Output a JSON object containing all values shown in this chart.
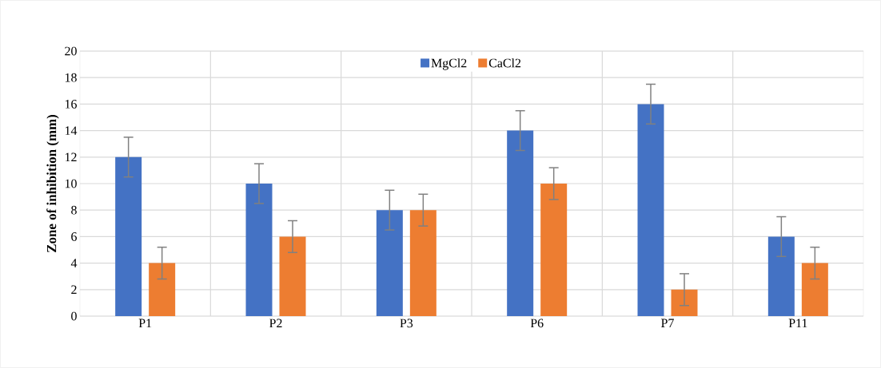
{
  "chart_data": {
    "type": "bar",
    "ylabel": "Zone of inhibition (mm)",
    "categories": [
      "P1",
      "P2",
      "P3",
      "P6",
      "P7",
      "P11"
    ],
    "series": [
      {
        "name": "MgCl2",
        "color": "#4472c4",
        "values": [
          12,
          10,
          8,
          14,
          16,
          6
        ],
        "errors": [
          1.5,
          1.5,
          1.5,
          1.5,
          1.5,
          1.5
        ]
      },
      {
        "name": "CaCl2",
        "color": "#ed7d31",
        "values": [
          4,
          6,
          8,
          10,
          2,
          4
        ],
        "errors": [
          1.2,
          1.2,
          1.2,
          1.2,
          1.2,
          1.2
        ]
      }
    ],
    "ylim": [
      0,
      20
    ],
    "yticks": [
      0,
      2,
      4,
      6,
      8,
      10,
      12,
      14,
      16,
      18,
      20
    ],
    "grid": true,
    "legend": "top"
  }
}
